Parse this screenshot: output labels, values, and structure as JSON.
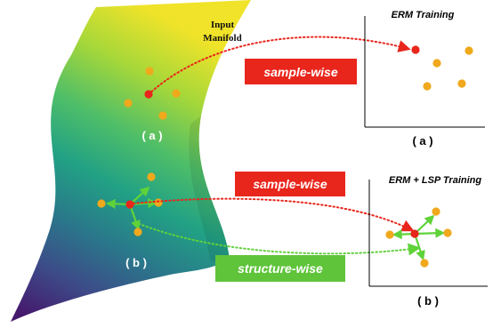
{
  "manifold": {
    "label_line1": "Input",
    "label_line2": "Manifold",
    "label_a": "( a )",
    "label_b": "( b )"
  },
  "tags": {
    "sample_wise_top": "sample-wise",
    "sample_wise_bottom": "sample-wise",
    "structure_wise": "structure-wise"
  },
  "panel_a": {
    "title": "ERM Training",
    "caption": "( a )"
  },
  "panel_b": {
    "title": "ERM + LSP Training",
    "caption": "( b )"
  },
  "colors": {
    "anchor": "#e8261c",
    "neighbor": "#f0a81c",
    "arrow_green": "#5fd23a",
    "tag_red": "#e8261c",
    "tag_green": "#5fc43a",
    "axis": "#000000"
  }
}
